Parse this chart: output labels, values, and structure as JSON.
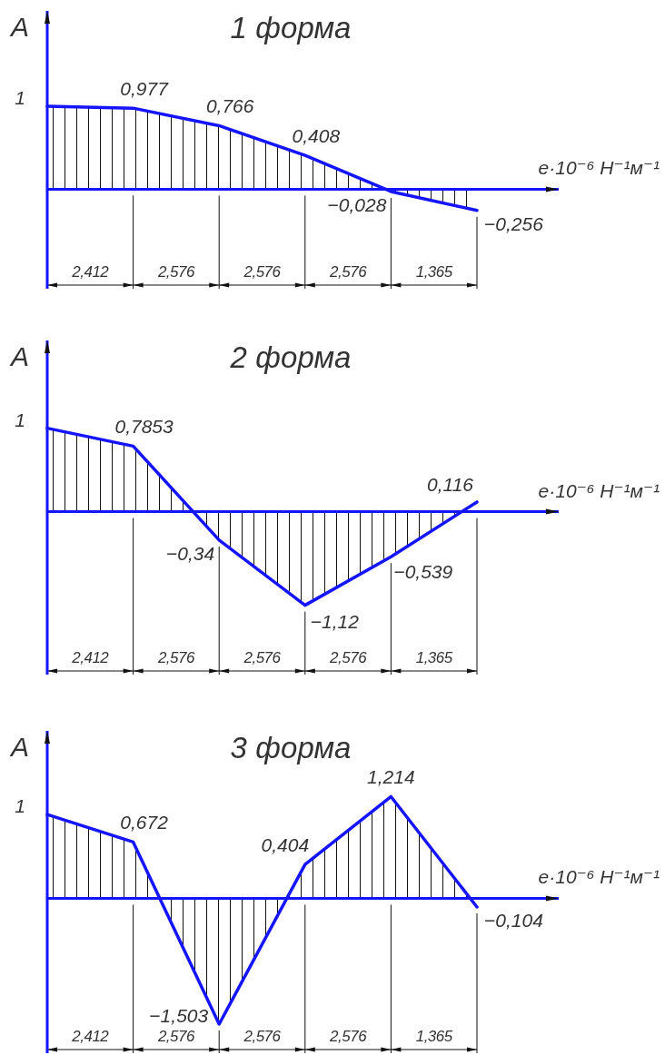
{
  "chart_data": [
    {
      "type": "area",
      "title": "1 форма",
      "xlabel": "e·10⁻⁶ Н⁻¹м⁻¹",
      "ylabel": "A",
      "categories": [
        null,
        null,
        null,
        null,
        null,
        null
      ],
      "values": [
        1,
        0.977,
        0.766,
        0.408,
        -0.028,
        -0.256
      ],
      "value_labels": [
        "1",
        "0,977",
        "0,766",
        "0,408",
        "−0,028",
        "−0,256"
      ],
      "color": "#1414ff",
      "ylim": [
        -1.2,
        2.15
      ],
      "ref_lines": [
        {
          "axis": "y",
          "value": 0,
          "color": "#1414ff"
        }
      ],
      "annotations": [
        "2,412",
        "2,576",
        "2,576",
        "2,576",
        "1,365"
      ]
    },
    {
      "type": "area",
      "title": "2 форма",
      "xlabel": "e·10⁻⁶ Н⁻¹м⁻¹",
      "ylabel": "A",
      "categories": [
        null,
        null,
        null,
        null,
        null,
        null
      ],
      "values": [
        1,
        0.7853,
        -0.34,
        -1.12,
        -0.539,
        0.116
      ],
      "value_labels": [
        "1",
        "0,7853",
        "−0,34",
        "−1,12",
        "−0,539",
        "0,116"
      ],
      "color": "#1414ff",
      "ylim": [
        -1.95,
        2.05
      ],
      "ref_lines": [
        {
          "axis": "y",
          "value": 0,
          "color": "#1414ff"
        }
      ],
      "annotations": [
        "2,412",
        "2,576",
        "2,576",
        "2,576",
        "1,365"
      ]
    },
    {
      "type": "area",
      "title": "3 форма",
      "xlabel": "e·10⁻⁶ Н⁻¹м⁻¹",
      "ylabel": "A",
      "categories": [
        null,
        null,
        null,
        null,
        null,
        null
      ],
      "values": [
        1,
        0.672,
        -1.503,
        0.404,
        1.214,
        -0.104
      ],
      "value_labels": [
        "1",
        "0,672",
        "−1,503",
        "0,404",
        "1,214",
        "−0,104"
      ],
      "color": "#1414ff",
      "ylim": [
        -1.85,
        2.0
      ],
      "ref_lines": [
        {
          "axis": "y",
          "value": 0,
          "color": "#1414ff"
        }
      ],
      "annotations": [
        "2,412",
        "2,576",
        "2,576",
        "2,576",
        "1,365"
      ]
    }
  ]
}
